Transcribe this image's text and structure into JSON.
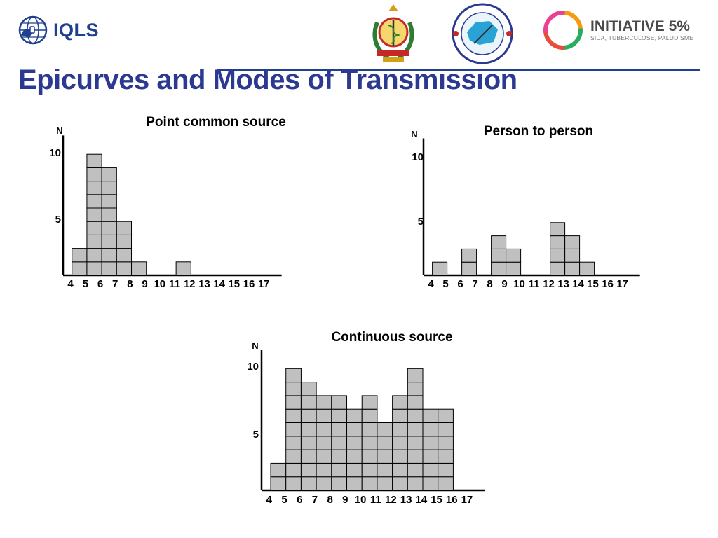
{
  "header": {
    "iqls_logo_text": "IQLS",
    "initiative_title": "INITIATIVE 5%",
    "initiative_subtitle": "SIDA, TUBERCULOSE, PALUDISME"
  },
  "page_title": "Epicurves and Modes of Transmission",
  "colors": {
    "title": "#2b3990",
    "bar_fill": "#c0c0c0",
    "bar_stroke": "#000000"
  },
  "chart_data": [
    {
      "type": "bar",
      "title": "Point common source",
      "ylabel": "N",
      "xlabel": "",
      "categories": [
        "4",
        "5",
        "6",
        "7",
        "8",
        "9",
        "10",
        "11",
        "12",
        "13",
        "14",
        "15",
        "16",
        "17"
      ],
      "values": [
        2,
        9,
        8,
        4,
        1,
        0,
        0,
        1,
        0,
        0,
        0,
        0,
        0,
        0
      ],
      "yticks": [
        5,
        10
      ],
      "ylim": [
        0,
        10
      ]
    },
    {
      "type": "bar",
      "title": "Person to person",
      "ylabel": "N",
      "xlabel": "",
      "categories": [
        "4",
        "5",
        "6",
        "7",
        "8",
        "9",
        "10",
        "11",
        "12",
        "13",
        "14",
        "15",
        "16",
        "17"
      ],
      "values": [
        1,
        0,
        2,
        0,
        3,
        2,
        0,
        0,
        4,
        3,
        1,
        0,
        0,
        0
      ],
      "yticks": [
        5,
        10
      ],
      "ylim": [
        0,
        10
      ]
    },
    {
      "type": "bar",
      "title": "Continuous source",
      "ylabel": "N",
      "xlabel": "",
      "categories": [
        "4",
        "5",
        "6",
        "7",
        "8",
        "9",
        "10",
        "11",
        "12",
        "13",
        "14",
        "15",
        "16",
        "17"
      ],
      "values": [
        2,
        9,
        8,
        7,
        7,
        6,
        7,
        5,
        7,
        9,
        6,
        6,
        0,
        0
      ],
      "yticks": [
        5,
        10
      ],
      "ylim": [
        0,
        10
      ]
    }
  ]
}
